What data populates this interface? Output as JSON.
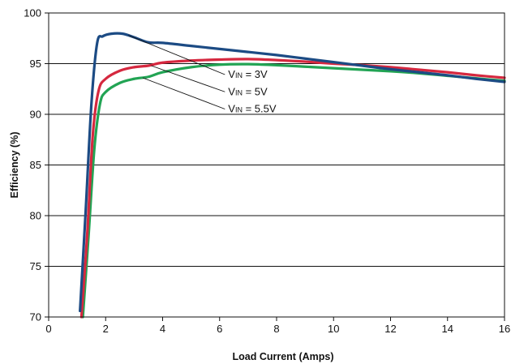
{
  "chart_data": {
    "type": "line",
    "title": "",
    "xlabel": "Load Current (Amps)",
    "ylabel": "Efficiency (%)",
    "xlim": [
      0,
      16
    ],
    "ylim": [
      70,
      100
    ],
    "x_ticks": [
      0,
      2,
      4,
      6,
      8,
      10,
      12,
      14,
      16
    ],
    "y_ticks": [
      70,
      75,
      80,
      85,
      90,
      95,
      100
    ],
    "grid": "horizontal",
    "legend": "none",
    "series": [
      {
        "name": "VIN = 3V",
        "label_main": "V",
        "label_sub": "IN",
        "label_rest": " = 3V",
        "color": "#1c4b84",
        "points": [
          [
            1.1,
            70.6
          ],
          [
            1.3,
            80.5
          ],
          [
            1.5,
            91.0
          ],
          [
            1.7,
            97.0
          ],
          [
            1.9,
            97.7
          ],
          [
            2.2,
            97.95
          ],
          [
            2.6,
            97.95
          ],
          [
            3.0,
            97.6
          ],
          [
            3.5,
            97.1
          ],
          [
            4.0,
            97.05
          ],
          [
            5.0,
            96.75
          ],
          [
            6.0,
            96.45
          ],
          [
            7.0,
            96.15
          ],
          [
            8.0,
            95.85
          ],
          [
            9.0,
            95.5
          ],
          [
            10.0,
            95.15
          ],
          [
            11.0,
            94.8
          ],
          [
            12.0,
            94.45
          ],
          [
            13.0,
            94.15
          ],
          [
            14.0,
            93.85
          ],
          [
            15.0,
            93.5
          ],
          [
            16.0,
            93.2
          ]
        ]
      },
      {
        "name": "VIN = 5V",
        "label_main": "V",
        "label_sub": "IN",
        "label_rest": " = 5V",
        "color": "#d5283f",
        "points": [
          [
            1.15,
            70.0
          ],
          [
            1.35,
            78.0
          ],
          [
            1.55,
            88.0
          ],
          [
            1.75,
            92.3
          ],
          [
            2.0,
            93.5
          ],
          [
            2.5,
            94.3
          ],
          [
            3.0,
            94.65
          ],
          [
            3.5,
            94.8
          ],
          [
            4.0,
            95.1
          ],
          [
            5.0,
            95.3
          ],
          [
            6.0,
            95.4
          ],
          [
            7.0,
            95.45
          ],
          [
            8.0,
            95.35
          ],
          [
            9.0,
            95.2
          ],
          [
            10.0,
            95.0
          ],
          [
            11.0,
            94.85
          ],
          [
            12.0,
            94.65
          ],
          [
            13.0,
            94.4
          ],
          [
            14.0,
            94.15
          ],
          [
            15.0,
            93.85
          ],
          [
            16.0,
            93.6
          ]
        ]
      },
      {
        "name": "VIN = 5.5V",
        "label_main": "V",
        "label_sub": "IN",
        "label_rest": " = 5.5V",
        "color": "#22a454",
        "points": [
          [
            1.2,
            70.0
          ],
          [
            1.4,
            78.0
          ],
          [
            1.6,
            86.5
          ],
          [
            1.8,
            91.0
          ],
          [
            2.0,
            92.2
          ],
          [
            2.5,
            93.1
          ],
          [
            3.0,
            93.5
          ],
          [
            3.5,
            93.7
          ],
          [
            4.0,
            94.15
          ],
          [
            5.0,
            94.65
          ],
          [
            6.0,
            94.9
          ],
          [
            7.0,
            94.95
          ],
          [
            8.0,
            94.85
          ],
          [
            9.0,
            94.7
          ],
          [
            10.0,
            94.55
          ],
          [
            11.0,
            94.4
          ],
          [
            12.0,
            94.25
          ],
          [
            13.0,
            94.05
          ],
          [
            14.0,
            93.8
          ],
          [
            15.0,
            93.55
          ],
          [
            16.0,
            93.3
          ]
        ]
      }
    ],
    "annotations": [
      {
        "series": 0,
        "anchor": [
          2.8,
          97.8
        ],
        "label_pos": [
          6.3,
          93.6
        ]
      },
      {
        "series": 1,
        "anchor": [
          3.6,
          94.8
        ],
        "label_pos": [
          6.3,
          91.9
        ]
      },
      {
        "series": 2,
        "anchor": [
          3.3,
          93.6
        ],
        "label_pos": [
          6.3,
          90.2
        ]
      }
    ]
  }
}
